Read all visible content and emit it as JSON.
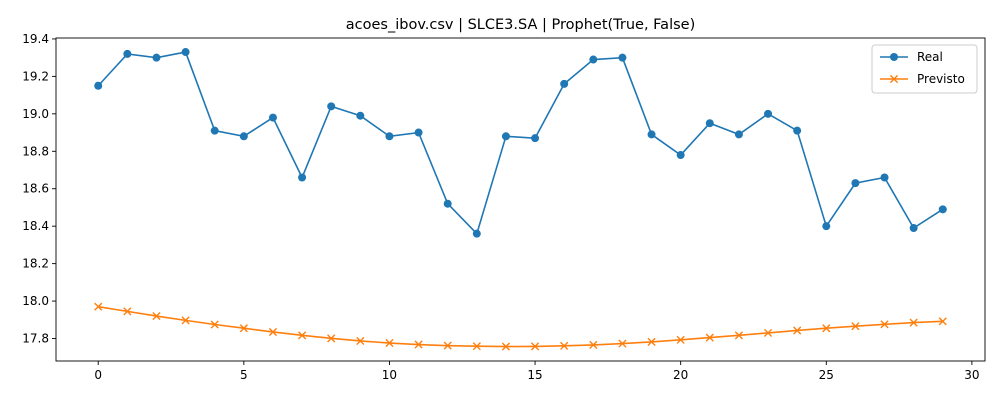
{
  "chart_data": {
    "type": "line",
    "title": "acoes_ibov.csv | SLCE3.SA | Prophet(True, False)",
    "xlabel": "",
    "ylabel": "",
    "xlim": [
      -1.45,
      30.45
    ],
    "ylim": [
      17.68,
      19.405
    ],
    "xticks": [
      0,
      5,
      10,
      15,
      20,
      25,
      30
    ],
    "yticks": [
      17.8,
      18.0,
      18.2,
      18.4,
      18.6,
      18.8,
      19.0,
      19.2,
      19.4
    ],
    "grid": false,
    "legend_position": "top-right",
    "x": [
      0,
      1,
      2,
      3,
      4,
      5,
      6,
      7,
      8,
      9,
      10,
      11,
      12,
      13,
      14,
      15,
      16,
      17,
      18,
      19,
      20,
      21,
      22,
      23,
      24,
      25,
      26,
      27,
      28,
      29
    ],
    "series": [
      {
        "name": "Real",
        "color": "#1f77b4",
        "marker": "circle",
        "values": [
          19.15,
          19.32,
          19.3,
          19.33,
          18.91,
          18.88,
          18.98,
          18.66,
          19.04,
          18.99,
          18.88,
          18.9,
          18.52,
          18.36,
          18.88,
          18.87,
          19.16,
          19.29,
          19.3,
          18.89,
          18.78,
          18.95,
          18.89,
          19.0,
          18.91,
          18.4,
          18.63,
          18.66,
          18.39,
          18.49
        ]
      },
      {
        "name": "Previsto",
        "color": "#ff7f0e",
        "marker": "x",
        "values": [
          17.97,
          17.945,
          17.92,
          17.897,
          17.875,
          17.855,
          17.835,
          17.817,
          17.801,
          17.787,
          17.776,
          17.768,
          17.762,
          17.759,
          17.757,
          17.758,
          17.761,
          17.766,
          17.773,
          17.782,
          17.793,
          17.805,
          17.817,
          17.83,
          17.843,
          17.855,
          17.866,
          17.876,
          17.885,
          17.892
        ]
      }
    ]
  }
}
